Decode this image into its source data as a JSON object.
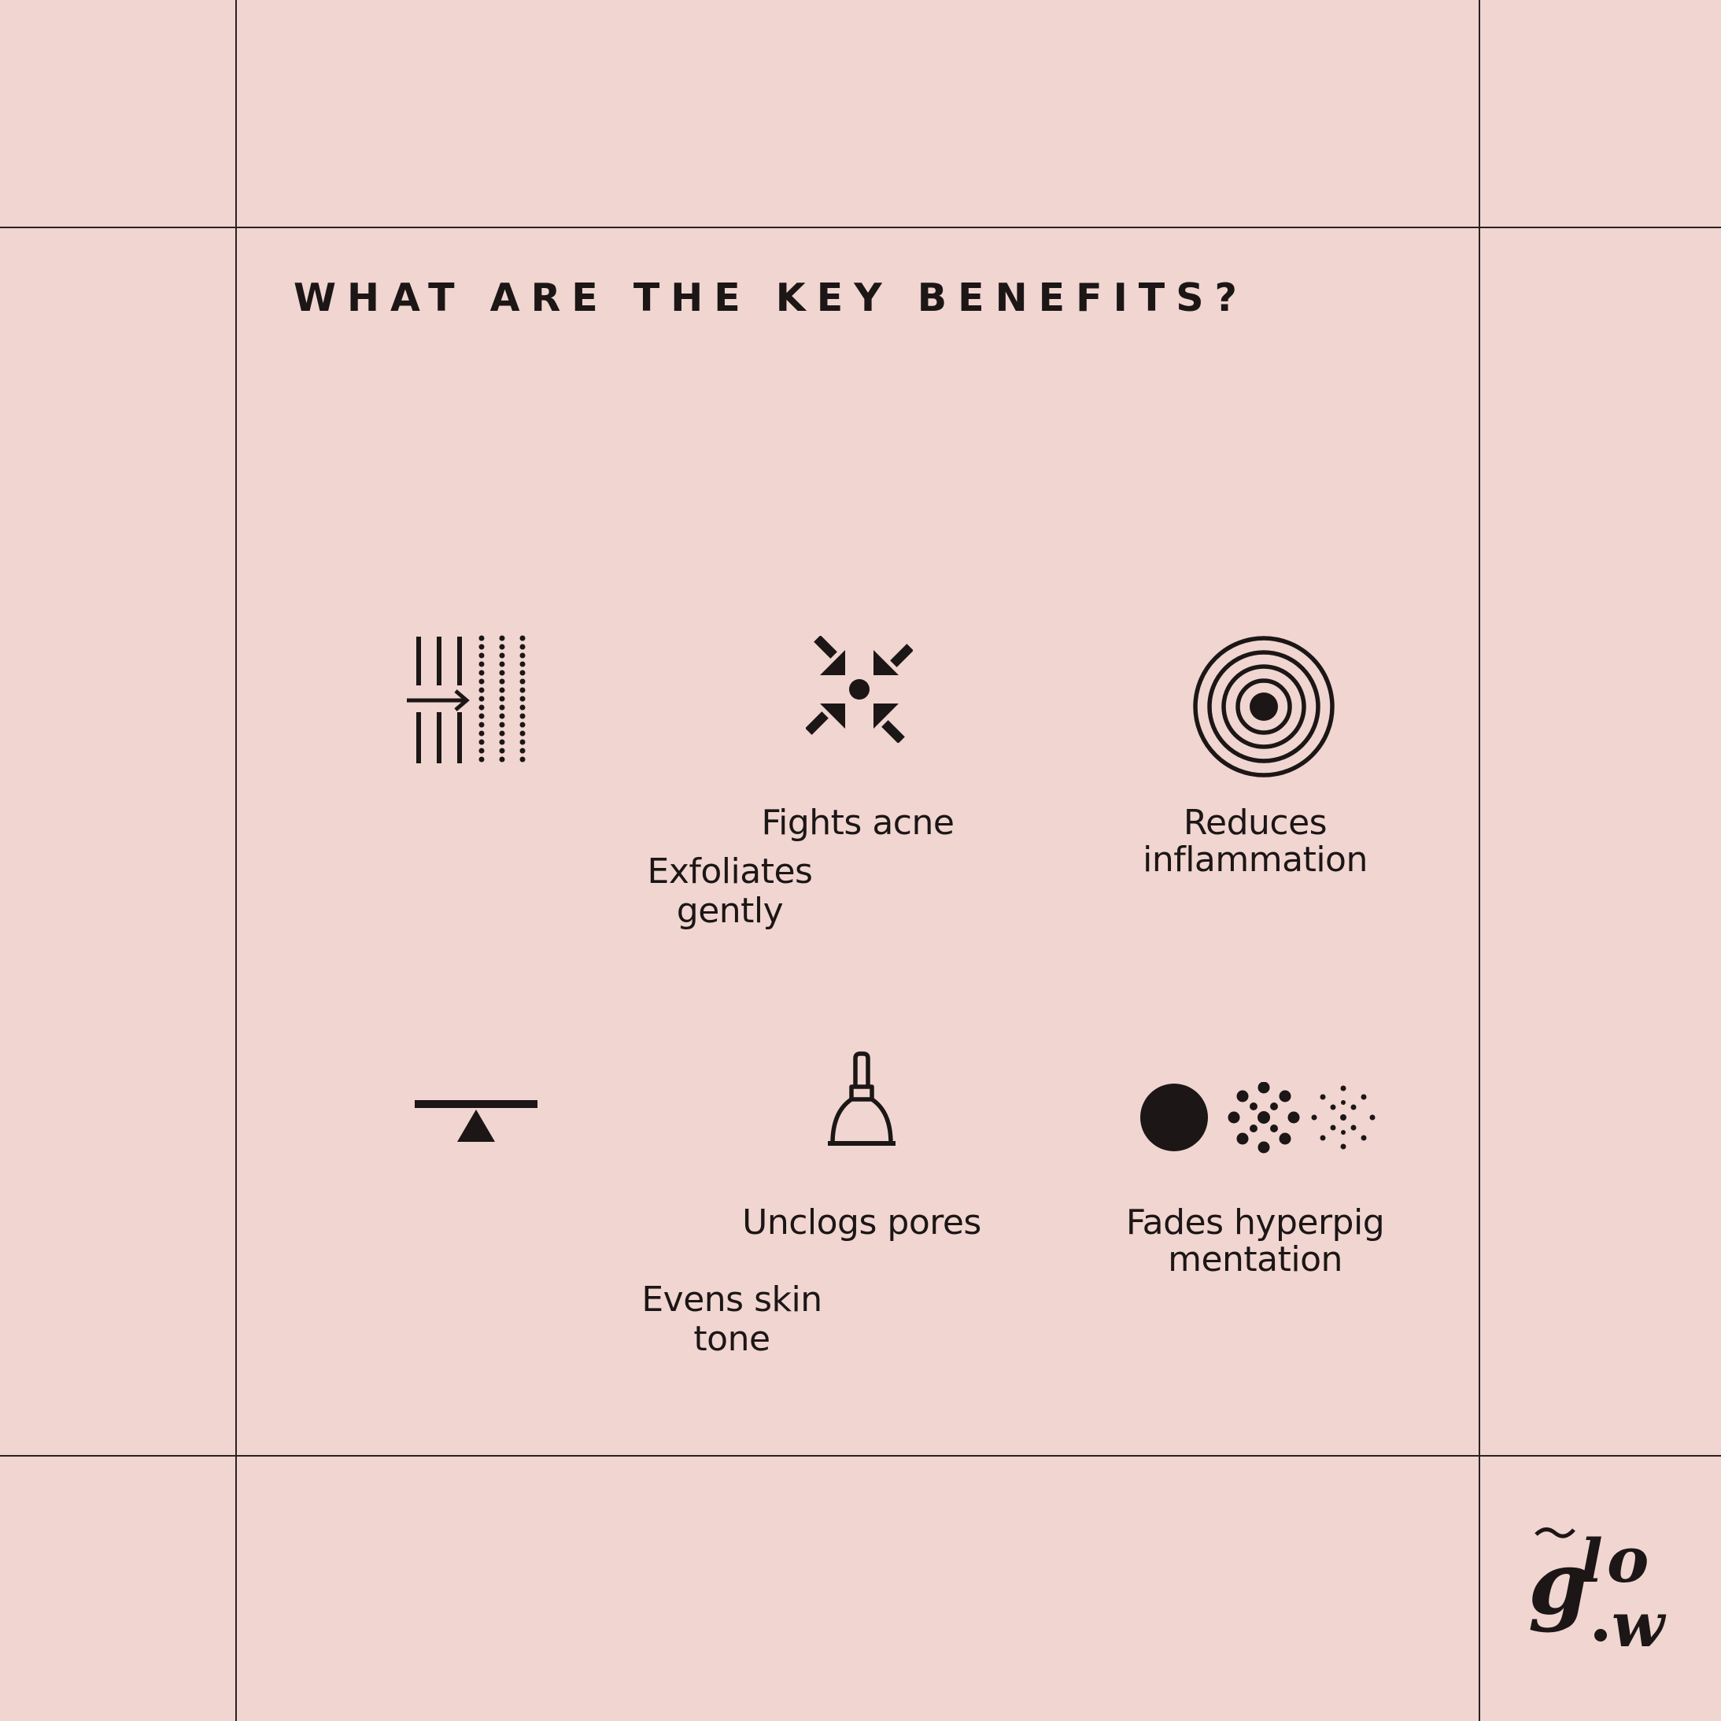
{
  "title": "WHAT ARE THE KEY BENEFITS?",
  "benefits": [
    {
      "label": "Exfoliates gently",
      "icon": "exfoliate-lines-icon"
    },
    {
      "label": "Fights acne",
      "icon": "arrows-converge-icon"
    },
    {
      "label": "Reduces inflammation",
      "icon": "concentric-circles-icon"
    },
    {
      "label": "Evens skin tone",
      "icon": "balance-seesaw-icon"
    },
    {
      "label": "Unclogs pores",
      "icon": "plunger-icon"
    },
    {
      "label": "Fades hyperpigmentation",
      "icon": "dots-fade-icon"
    }
  ],
  "logo": {
    "text": "glow"
  },
  "colors": {
    "background": "#f0d5d0",
    "ink": "#1c1616",
    "grid": "#2a2222"
  }
}
